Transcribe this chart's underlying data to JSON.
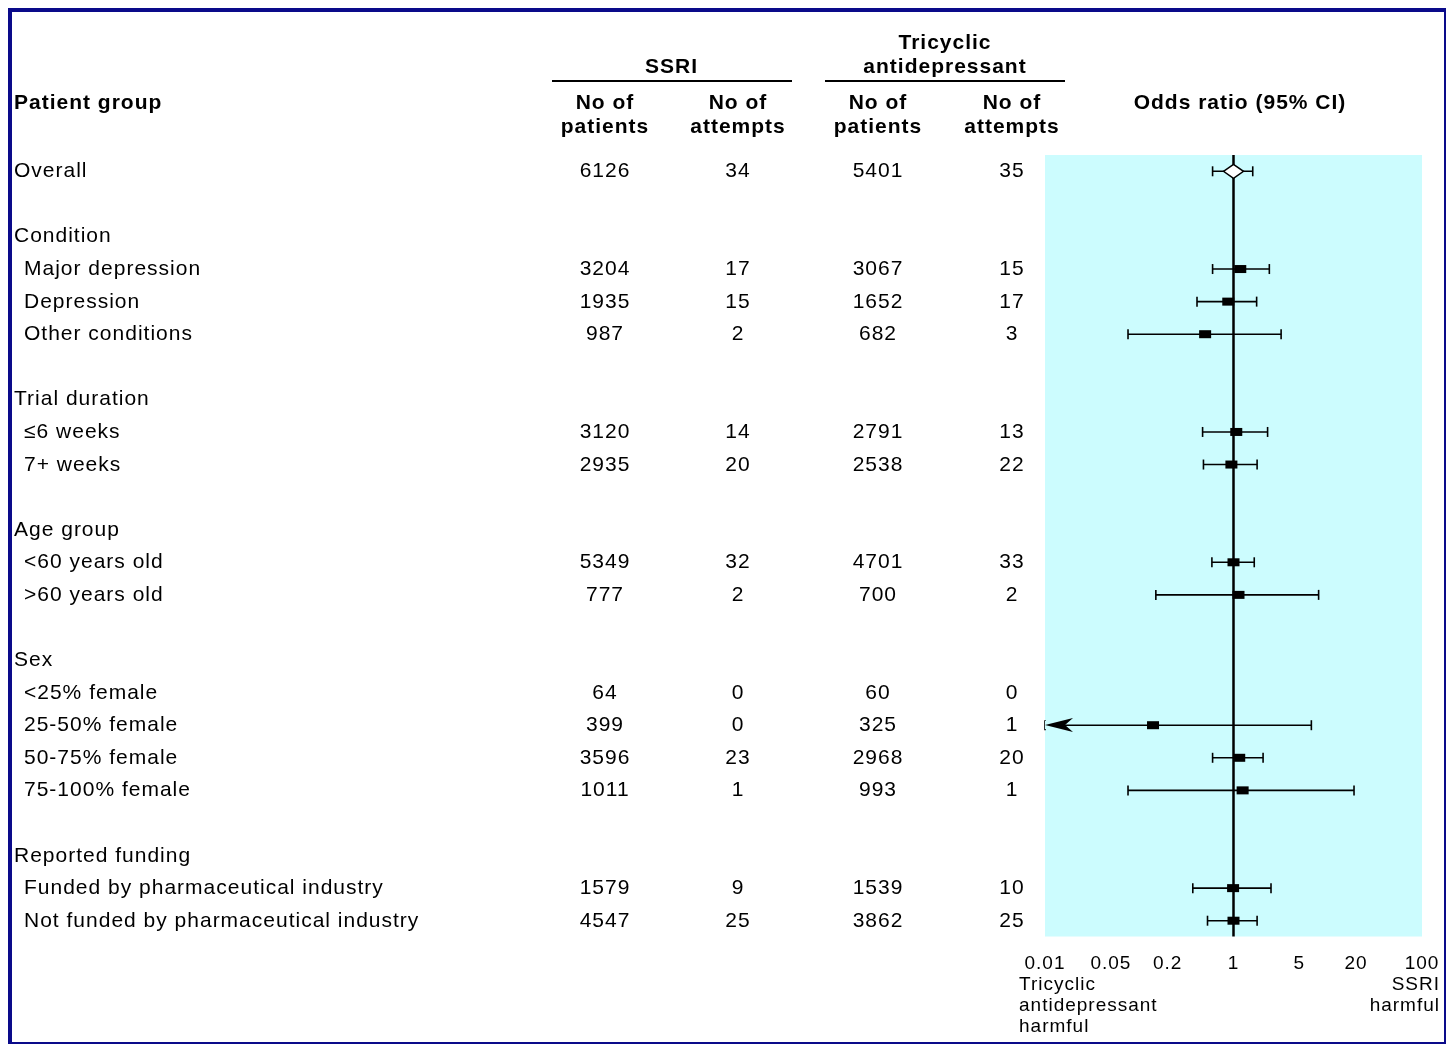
{
  "chart_data": [
    {
      "type": "other",
      "data_labels": true,
      "categories": [
        "Overall",
        null,
        "Condition",
        "Major depression",
        "Depression",
        "Other conditions",
        null,
        "Trial duration",
        "≤6 weeks",
        "7+ weeks",
        null,
        "Age group",
        "<60 years old",
        ">60 years old",
        null,
        "Sex",
        "<25% female",
        "25-50% female",
        "50-75% female",
        "75-100% female",
        null,
        "Reported funding",
        "Funded by pharmaceutical industry",
        "Not funded by pharmaceutical industry"
      ],
      "annotations": [
        "SSRI",
        "Tricyclic antidepressant"
      ],
      "series": [
        {
          "name": "No of patients",
          "values": [
            6126,
            null,
            null,
            3204,
            1935,
            987,
            null,
            null,
            3120,
            2935,
            null,
            null,
            5349,
            777,
            null,
            null,
            64,
            399,
            3596,
            1011,
            null,
            null,
            1579,
            4547
          ]
        },
        {
          "name": "No of attempts",
          "values": [
            34,
            null,
            null,
            17,
            15,
            2,
            null,
            null,
            14,
            20,
            null,
            null,
            32,
            2,
            null,
            null,
            0,
            0,
            23,
            1,
            null,
            null,
            9,
            25
          ]
        },
        {
          "name": "No of patients",
          "values": [
            5401,
            null,
            null,
            3067,
            1652,
            682,
            null,
            null,
            2791,
            2538,
            null,
            null,
            4701,
            700,
            null,
            null,
            60,
            325,
            2968,
            993,
            null,
            null,
            1539,
            3862
          ]
        },
        {
          "name": "No of attempts",
          "values": [
            35,
            null,
            null,
            15,
            17,
            3,
            null,
            null,
            13,
            22,
            null,
            null,
            33,
            2,
            null,
            null,
            0,
            1,
            20,
            1,
            null,
            null,
            10,
            25
          ]
        }
      ]
    },
    {
      "type": "scatter",
      "title": "Odds ratio (95% CI)",
      "ylabel": "Patient group",
      "orientation": "horizontal",
      "tick_labels": "x",
      "categories": [
        null,
        null,
        null,
        null,
        null,
        null,
        null,
        null,
        null,
        null,
        null,
        null,
        null,
        null,
        null,
        null,
        null,
        null,
        null,
        null,
        null,
        null,
        null,
        null
      ],
      "series": [
        {
          "color": "#000000",
          "marker": "diamond",
          "values": [
            1.0,
            null,
            null,
            null,
            null,
            null,
            null,
            null,
            null,
            null,
            null,
            null,
            null,
            null,
            null,
            null,
            null,
            null,
            null,
            null,
            null,
            null,
            null,
            null
          ],
          "errors": [
            [
              0.6,
              1.6
            ],
            null,
            null,
            null,
            null,
            null,
            null,
            null,
            null,
            null,
            null,
            null,
            null,
            null,
            null,
            null,
            null,
            null,
            null,
            null,
            null,
            null,
            null,
            null
          ]
        },
        {
          "color": "#000000",
          "marker": "square",
          "values": [
            null,
            null,
            null,
            1.18,
            0.88,
            0.5,
            null,
            null,
            1.07,
            0.95,
            null,
            null,
            1.0,
            1.13,
            null,
            null,
            null,
            0.14,
            1.15,
            1.25,
            null,
            null,
            0.99,
            1.0
          ],
          "errors": [
            null,
            null,
            null,
            [
              0.6,
              2.4
            ],
            [
              0.41,
              1.76
            ],
            [
              0.076,
              3.2
            ],
            null,
            null,
            [
              0.47,
              2.3
            ],
            [
              0.48,
              1.78
            ],
            null,
            null,
            [
              0.59,
              1.66
            ],
            [
              0.15,
              8.0
            ],
            null,
            null,
            null,
            [
              0.01,
              6.7
            ],
            [
              0.6,
              2.06
            ],
            [
              0.076,
              19
            ],
            null,
            null,
            [
              0.37,
              2.5
            ],
            [
              0.53,
              1.78
            ]
          ]
        }
      ],
      "xlim": [
        0.01,
        100
      ],
      "xticks": [
        0.01,
        0.05,
        0.2,
        1,
        5,
        20,
        100
      ],
      "log": "x",
      "ref_lines": [
        {
          "axis": "x",
          "value": 1,
          "color": "#000000"
        }
      ],
      "annotations": [
        "Tricyclic antidepressant harmful",
        "SSRI harmful"
      ]
    }
  ]
}
